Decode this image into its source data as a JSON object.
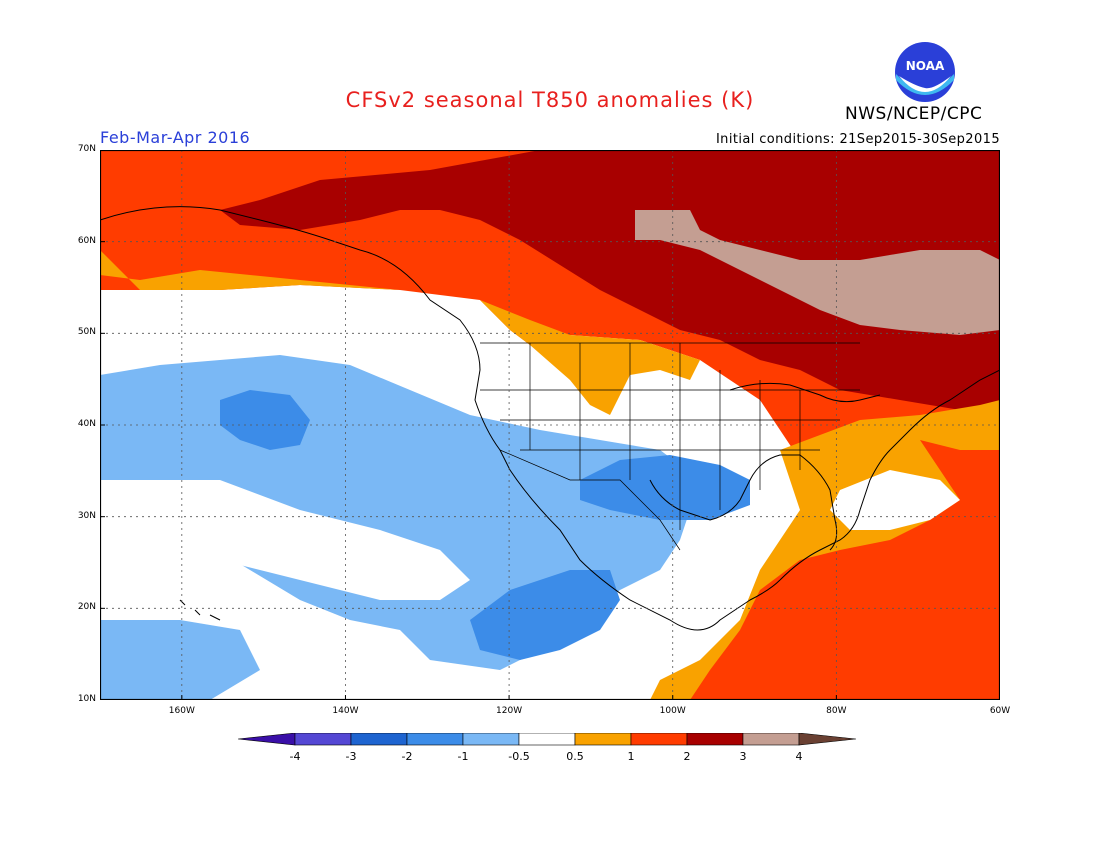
{
  "title": "CFSv2 seasonal T850 anomalies (K)",
  "agency": "NWS/NCEP/CPC",
  "logo_text": "NOAA",
  "season": "Feb-Mar-Apr 2016",
  "initial_conditions": "Initial conditions: 21Sep2015-30Sep2015",
  "axes": {
    "lon_range": [
      -170,
      -60
    ],
    "lat_range": [
      10,
      70
    ],
    "lat_ticks": [
      {
        "value": 70,
        "label": "70N"
      },
      {
        "value": 60,
        "label": "60N"
      },
      {
        "value": 50,
        "label": "50N"
      },
      {
        "value": 40,
        "label": "40N"
      },
      {
        "value": 30,
        "label": "30N"
      },
      {
        "value": 20,
        "label": "20N"
      },
      {
        "value": 10,
        "label": "10N"
      }
    ],
    "lon_ticks": [
      {
        "value": -160,
        "label": "160W"
      },
      {
        "value": -140,
        "label": "140W"
      },
      {
        "value": -120,
        "label": "120W"
      },
      {
        "value": -100,
        "label": "100W"
      },
      {
        "value": -80,
        "label": "80W"
      },
      {
        "value": -60,
        "label": "60W"
      }
    ],
    "grid": "dotted"
  },
  "colorbar": {
    "colors": [
      "#3a0fa8",
      "#5447d4",
      "#1e64d0",
      "#3c8ce8",
      "#7ab8f5",
      "#ffffff",
      "#f9a200",
      "#ff3c00",
      "#a80000",
      "#c49e92",
      "#6a4032"
    ],
    "labels": [
      "-4",
      "-3",
      "-2",
      "-1",
      "-0.5",
      "0.5",
      "1",
      "2",
      "3",
      "4"
    ]
  }
}
